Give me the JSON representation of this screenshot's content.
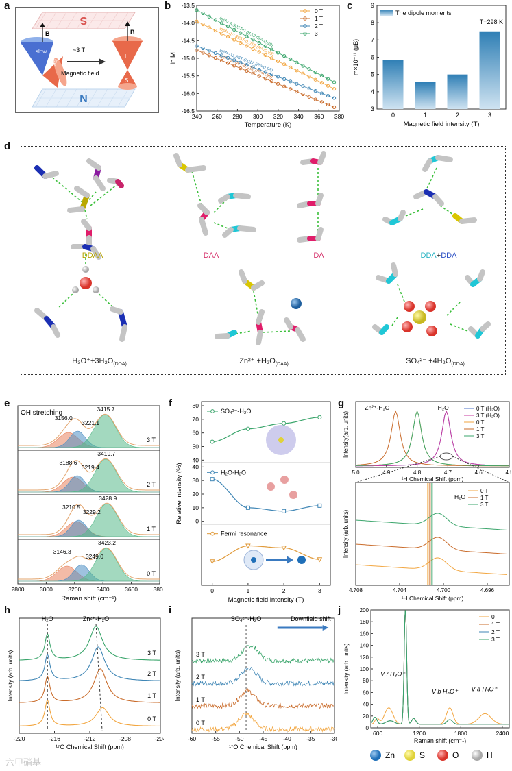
{
  "panel_labels": {
    "a": "a",
    "b": "b",
    "c": "c",
    "d": "d",
    "e": "e",
    "f": "f",
    "g": "g",
    "h": "h",
    "i": "i",
    "j": "j"
  },
  "panel_a": {
    "top_magnet": "S",
    "bottom_magnet": "N",
    "field_symbol": "B",
    "field_label": "~3 T",
    "arrow_caption": "Magnetic field",
    "slow_label": "slow",
    "fast_label": "fast",
    "i_label": "I",
    "s_label": "S",
    "colors": {
      "cone_blue": "#4a6fd1",
      "cone_red": "#e8694a",
      "grid_top": "#e6b8b8",
      "grid_bottom": "#bcd4ec"
    }
  },
  "panel_b": {
    "chart_data": {
      "type": "line",
      "xlabel": "Temperature (K)",
      "ylabel": "ln M",
      "xlim": [
        240,
        380
      ],
      "ylim": [
        -16.5,
        -13.5
      ],
      "xticks": [
        240,
        260,
        280,
        300,
        320,
        340,
        360,
        380
      ],
      "yticks": [
        -13.5,
        -14.0,
        -14.5,
        -15.0,
        -15.5,
        -16.0,
        -16.5
      ],
      "series": [
        {
          "name": "0 T",
          "color": "#f2a640",
          "x": [
            240,
            375
          ],
          "y": [
            -13.95,
            -15.87
          ],
          "eq": "lnM=-10.395T-0.015 (R²=0.99)"
        },
        {
          "name": "1 T",
          "color": "#c96b2a",
          "x": [
            240,
            375
          ],
          "y": [
            -14.77,
            -16.39
          ],
          "eq": "lnM=-11.66T-0.012 (R²=0.98)"
        },
        {
          "name": "2 T",
          "color": "#3f86b5",
          "x": [
            240,
            375
          ],
          "y": [
            -14.65,
            -16.13
          ],
          "eq": "lnM=-11.86T-0.011 (R²=0.98)"
        },
        {
          "name": "3 T",
          "color": "#3aa56b",
          "x": [
            240,
            375
          ],
          "y": [
            -13.63,
            -15.68
          ],
          "eq": "lnM=-9.905T-0.0153 (R²=0.99)"
        }
      ]
    }
  },
  "panel_c": {
    "chart_data": {
      "type": "bar",
      "title": "The dipole moments",
      "annotation": "T=298 K",
      "xlabel": "Magnetic field intensity (T)",
      "ylabel": "m×10⁻¹¹ (μB)",
      "categories": [
        "0",
        "1",
        "2",
        "3"
      ],
      "values": [
        5.85,
        4.55,
        5.0,
        7.5
      ],
      "ylim": [
        3,
        9
      ],
      "yticks": [
        3,
        4,
        5,
        6,
        7,
        8,
        9
      ],
      "colors": {
        "bar_top": "#2f7fb5",
        "bar_bottom": "#cfe3f1"
      }
    }
  },
  "panel_d": {
    "labels": [
      {
        "text": "DDAA",
        "color": "#b6a400"
      },
      {
        "text": "DAA",
        "color": "#d6336c"
      },
      {
        "text": "DA",
        "color": "#d6336c"
      },
      {
        "text": "DDA",
        "color": "#2ab3c3"
      },
      {
        "text": "+",
        "color": "#555"
      },
      {
        "text": "DDA",
        "color": "#2b4fc4"
      }
    ],
    "bottom_labels": [
      {
        "main": "H₃O⁺+3H₂O",
        "sub": "(DDA)"
      },
      {
        "main": "Zn²⁺ +H₂O",
        "sub": "(DAA)"
      },
      {
        "main": "SO₄²⁻ +4H₂O",
        "sub": "(DDA)"
      }
    ]
  },
  "panel_e": {
    "title": "OH stretching",
    "chart_data": {
      "type": "area",
      "xlabel": "Raman shift (cm⁻¹)",
      "xlim": [
        2800,
        3800
      ],
      "xticks": [
        2800,
        3000,
        3200,
        3400,
        3600,
        3800
      ],
      "series": [
        {
          "name": "3 T",
          "peaks": [
            3156.0,
            3221.1,
            3415.7
          ]
        },
        {
          "name": "2 T",
          "peaks": [
            3188.6,
            3219.4,
            3419.7
          ]
        },
        {
          "name": "1 T",
          "peaks": [
            3210.5,
            3229.2,
            3428.9
          ]
        },
        {
          "name": "0 T",
          "peaks": [
            3146.3,
            3249.0,
            3423.2
          ]
        }
      ]
    },
    "peak_labels": [
      [
        "3156.0",
        "3221.1",
        "3415.7"
      ],
      [
        "3188.6",
        "3219.4",
        "3419.7"
      ],
      [
        "3210.5",
        "3229.2",
        "3428.9"
      ],
      [
        "3146.3",
        "3249.0",
        "3423.2"
      ]
    ],
    "field_labels": [
      "3 T",
      "2 T",
      "1 T",
      "0 T"
    ]
  },
  "panel_f": {
    "chart_data": {
      "type": "line",
      "xlabel": "Magnetic field intensity (T)",
      "ylabel": "Relative intensity (%)",
      "x": [
        0,
        1,
        2,
        3
      ],
      "series": [
        {
          "name": "SO₄²⁻-H₂O",
          "color": "#3aa56b",
          "values": [
            53.5,
            63,
            67,
            71.5
          ],
          "ylim": [
            40,
            80
          ],
          "yticks": [
            40,
            50,
            60,
            70,
            80
          ]
        },
        {
          "name": "H₂O-H₂O",
          "color": "#3f86b5",
          "values": [
            31,
            10,
            7.5,
            11.5
          ],
          "ylim": [
            0,
            40
          ],
          "yticks": [
            0,
            10,
            20,
            30,
            40
          ]
        },
        {
          "name": "Fermi resonance",
          "color": "#e09a3a",
          "values": [
            15.5,
            27,
            25.5,
            17
          ],
          "ylim": [
            0,
            40
          ],
          "yticks": []
        }
      ]
    },
    "legend_1": "SO₄²⁻-H₂O",
    "legend_2": "H₂O-H₂O",
    "legend_3": "Fermi resonance"
  },
  "panel_g": {
    "chart_data": {
      "type": "line",
      "xlabel": "¹H Chemical Shift (ppm)",
      "ylabel": "Intensity(arb. units)",
      "xlim": [
        5.0,
        4.5
      ],
      "xticks": [
        5.0,
        4.9,
        4.8,
        4.7,
        4.6,
        4.5
      ],
      "annotations": [
        "Zn²⁺-H₂O",
        "H₂O"
      ],
      "legend": [
        "0 T (H₂O)",
        "3 T (H₂O)",
        "0 T",
        "1 T",
        "3 T"
      ]
    },
    "zoom": {
      "xlim": [
        4.708,
        4.694
      ],
      "xticks": [
        4.708,
        4.704,
        4.7,
        4.696
      ],
      "annotation": "H₂O",
      "legend": [
        "0 T",
        "1 T",
        "3 T"
      ],
      "xlabel": "¹H Chemical Shift (ppm)",
      "ylabel": "Intensity (arb. units)"
    }
  },
  "panel_h": {
    "chart_data": {
      "type": "line",
      "xlabel": "¹⁷O Chemical Shift (ppm)",
      "ylabel": "Intensity (arb. units)",
      "xlim": [
        -220,
        -204
      ],
      "xticks": [
        -220,
        -216,
        -212,
        -208,
        -204
      ],
      "peaks": [
        "H₂O",
        "Zn²⁺-H₂O"
      ],
      "series": [
        "3 T",
        "2 T",
        "1 T",
        "0 T"
      ]
    }
  },
  "panel_i": {
    "chart_data": {
      "type": "line",
      "xlabel": "¹⁷O Chemical Shift (ppm)",
      "ylabel": "Intensity (arb. units)",
      "xlim": [
        -60,
        -30
      ],
      "xticks": [
        -60,
        -55,
        -50,
        -45,
        -40,
        -35,
        -30
      ],
      "peak": "SO₄²⁻-H₂O",
      "arrow_label": "Downfield shift",
      "series": [
        "3 T",
        "2 T",
        "1 T",
        "0 T"
      ]
    }
  },
  "panel_j": {
    "chart_data": {
      "type": "line",
      "xlabel": "Raman shift (cm⁻¹)",
      "ylabel": "Intensity (arb. units)",
      "xlim": [
        500,
        2500
      ],
      "ylim": [
        0,
        200
      ],
      "xticks": [
        600,
        1200,
        1800,
        2400
      ],
      "yticks": [
        0,
        20,
        40,
        60,
        80,
        100,
        120,
        140,
        160,
        180,
        200
      ],
      "legend": [
        "0 T",
        "1 T",
        "2 T",
        "3 T"
      ],
      "labels": [
        "V r H₃O⁺",
        "V b H₃O⁺",
        "V a H₃O⁺"
      ]
    }
  },
  "atom_legend": [
    {
      "name": "Zn",
      "color": "#1f6fb8"
    },
    {
      "name": "S",
      "color": "#e0d23a"
    },
    {
      "name": "O",
      "color": "#d9342b"
    },
    {
      "name": "H",
      "color": "#d8d8d8"
    }
  ],
  "watermark": "六甲硝基"
}
